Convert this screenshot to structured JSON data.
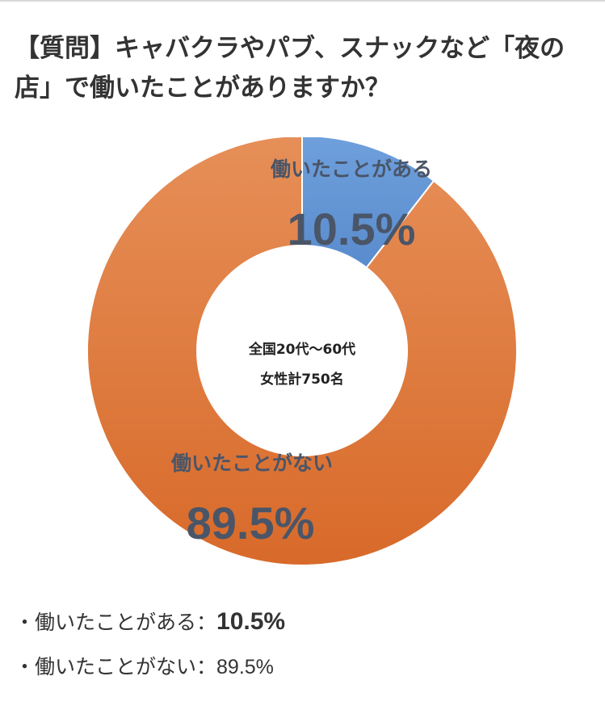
{
  "question": "【質問】キャバクラやパブ、スナックなど「夜の店」で働いたことがありますか？",
  "chart_data": {
    "type": "pie",
    "variant": "donut",
    "center_label": [
      "全国20代〜60代",
      "女性計750名"
    ],
    "slices": [
      {
        "label": "働いたことがある",
        "value": 10.5,
        "display": "10.5%",
        "color": "#5a8fd1"
      },
      {
        "label": "働いたことがない",
        "value": 89.5,
        "display": "89.5%",
        "color": "#e07a36"
      }
    ]
  },
  "summary": [
    {
      "label": "・働いたことがある：",
      "value": "10.5%"
    },
    {
      "label": "・働いたことがない：",
      "value": "89.5%"
    }
  ]
}
